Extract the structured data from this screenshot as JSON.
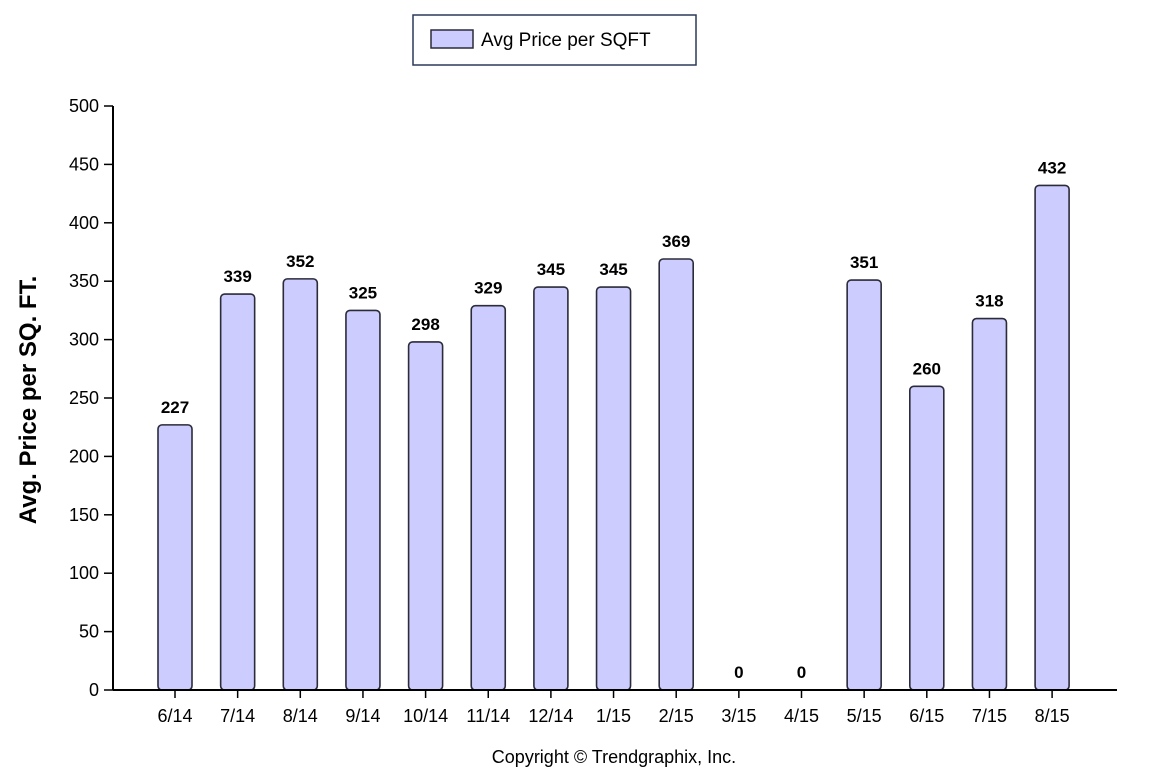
{
  "colors": {
    "bar_fill": "#ccccff",
    "bar_stroke": "#2b2b3a",
    "axis": "#000000"
  },
  "legend": {
    "label": "Avg Price per SQFT"
  },
  "footer": {
    "copyright": "Copyright © Trendgraphix, Inc."
  },
  "chart_data": {
    "type": "bar",
    "ylabel": "Avg. Price per SQ. FT.",
    "xlabel": "",
    "ylim": [
      0,
      500
    ],
    "yticks": [
      0,
      50,
      100,
      150,
      200,
      250,
      300,
      350,
      400,
      450,
      500
    ],
    "grid": false,
    "legend_position": "top-center",
    "categories": [
      "6/14",
      "7/14",
      "8/14",
      "9/14",
      "10/14",
      "11/14",
      "12/14",
      "1/15",
      "2/15",
      "3/15",
      "4/15",
      "5/15",
      "6/15",
      "7/15",
      "8/15"
    ],
    "series": [
      {
        "name": "Avg Price per SQFT",
        "values": [
          227,
          339,
          352,
          325,
          298,
          329,
          345,
          345,
          369,
          0,
          0,
          351,
          260,
          318,
          432
        ]
      }
    ]
  }
}
